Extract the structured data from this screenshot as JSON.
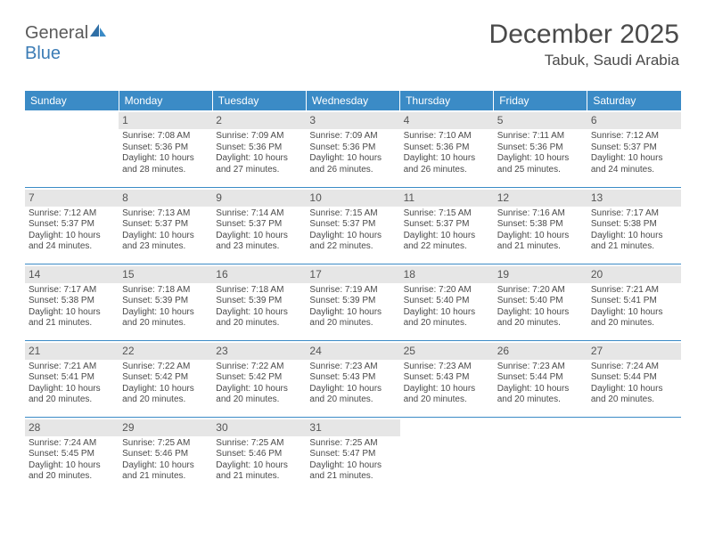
{
  "logo": {
    "text1": "General",
    "text2": "Blue"
  },
  "header": {
    "title": "December 2025",
    "location": "Tabuk, Saudi Arabia"
  },
  "colors": {
    "header_blue": "#3b8bc6",
    "daynum_bg": "#e6e6e6",
    "text": "#4a4a4a",
    "logo_blue": "#3b7cb5"
  },
  "weekdays": [
    "Sunday",
    "Monday",
    "Tuesday",
    "Wednesday",
    "Thursday",
    "Friday",
    "Saturday"
  ],
  "grid": [
    [
      null,
      {
        "n": "1",
        "sr": "7:08 AM",
        "ss": "5:36 PM",
        "dl": "10 hours and 28 minutes."
      },
      {
        "n": "2",
        "sr": "7:09 AM",
        "ss": "5:36 PM",
        "dl": "10 hours and 27 minutes."
      },
      {
        "n": "3",
        "sr": "7:09 AM",
        "ss": "5:36 PM",
        "dl": "10 hours and 26 minutes."
      },
      {
        "n": "4",
        "sr": "7:10 AM",
        "ss": "5:36 PM",
        "dl": "10 hours and 26 minutes."
      },
      {
        "n": "5",
        "sr": "7:11 AM",
        "ss": "5:36 PM",
        "dl": "10 hours and 25 minutes."
      },
      {
        "n": "6",
        "sr": "7:12 AM",
        "ss": "5:37 PM",
        "dl": "10 hours and 24 minutes."
      }
    ],
    [
      {
        "n": "7",
        "sr": "7:12 AM",
        "ss": "5:37 PM",
        "dl": "10 hours and 24 minutes."
      },
      {
        "n": "8",
        "sr": "7:13 AM",
        "ss": "5:37 PM",
        "dl": "10 hours and 23 minutes."
      },
      {
        "n": "9",
        "sr": "7:14 AM",
        "ss": "5:37 PM",
        "dl": "10 hours and 23 minutes."
      },
      {
        "n": "10",
        "sr": "7:15 AM",
        "ss": "5:37 PM",
        "dl": "10 hours and 22 minutes."
      },
      {
        "n": "11",
        "sr": "7:15 AM",
        "ss": "5:37 PM",
        "dl": "10 hours and 22 minutes."
      },
      {
        "n": "12",
        "sr": "7:16 AM",
        "ss": "5:38 PM",
        "dl": "10 hours and 21 minutes."
      },
      {
        "n": "13",
        "sr": "7:17 AM",
        "ss": "5:38 PM",
        "dl": "10 hours and 21 minutes."
      }
    ],
    [
      {
        "n": "14",
        "sr": "7:17 AM",
        "ss": "5:38 PM",
        "dl": "10 hours and 21 minutes."
      },
      {
        "n": "15",
        "sr": "7:18 AM",
        "ss": "5:39 PM",
        "dl": "10 hours and 20 minutes."
      },
      {
        "n": "16",
        "sr": "7:18 AM",
        "ss": "5:39 PM",
        "dl": "10 hours and 20 minutes."
      },
      {
        "n": "17",
        "sr": "7:19 AM",
        "ss": "5:39 PM",
        "dl": "10 hours and 20 minutes."
      },
      {
        "n": "18",
        "sr": "7:20 AM",
        "ss": "5:40 PM",
        "dl": "10 hours and 20 minutes."
      },
      {
        "n": "19",
        "sr": "7:20 AM",
        "ss": "5:40 PM",
        "dl": "10 hours and 20 minutes."
      },
      {
        "n": "20",
        "sr": "7:21 AM",
        "ss": "5:41 PM",
        "dl": "10 hours and 20 minutes."
      }
    ],
    [
      {
        "n": "21",
        "sr": "7:21 AM",
        "ss": "5:41 PM",
        "dl": "10 hours and 20 minutes."
      },
      {
        "n": "22",
        "sr": "7:22 AM",
        "ss": "5:42 PM",
        "dl": "10 hours and 20 minutes."
      },
      {
        "n": "23",
        "sr": "7:22 AM",
        "ss": "5:42 PM",
        "dl": "10 hours and 20 minutes."
      },
      {
        "n": "24",
        "sr": "7:23 AM",
        "ss": "5:43 PM",
        "dl": "10 hours and 20 minutes."
      },
      {
        "n": "25",
        "sr": "7:23 AM",
        "ss": "5:43 PM",
        "dl": "10 hours and 20 minutes."
      },
      {
        "n": "26",
        "sr": "7:23 AM",
        "ss": "5:44 PM",
        "dl": "10 hours and 20 minutes."
      },
      {
        "n": "27",
        "sr": "7:24 AM",
        "ss": "5:44 PM",
        "dl": "10 hours and 20 minutes."
      }
    ],
    [
      {
        "n": "28",
        "sr": "7:24 AM",
        "ss": "5:45 PM",
        "dl": "10 hours and 20 minutes."
      },
      {
        "n": "29",
        "sr": "7:25 AM",
        "ss": "5:46 PM",
        "dl": "10 hours and 21 minutes."
      },
      {
        "n": "30",
        "sr": "7:25 AM",
        "ss": "5:46 PM",
        "dl": "10 hours and 21 minutes."
      },
      {
        "n": "31",
        "sr": "7:25 AM",
        "ss": "5:47 PM",
        "dl": "10 hours and 21 minutes."
      },
      null,
      null,
      null
    ]
  ],
  "labels": {
    "sunrise": "Sunrise: ",
    "sunset": "Sunset: ",
    "daylight": "Daylight: "
  }
}
